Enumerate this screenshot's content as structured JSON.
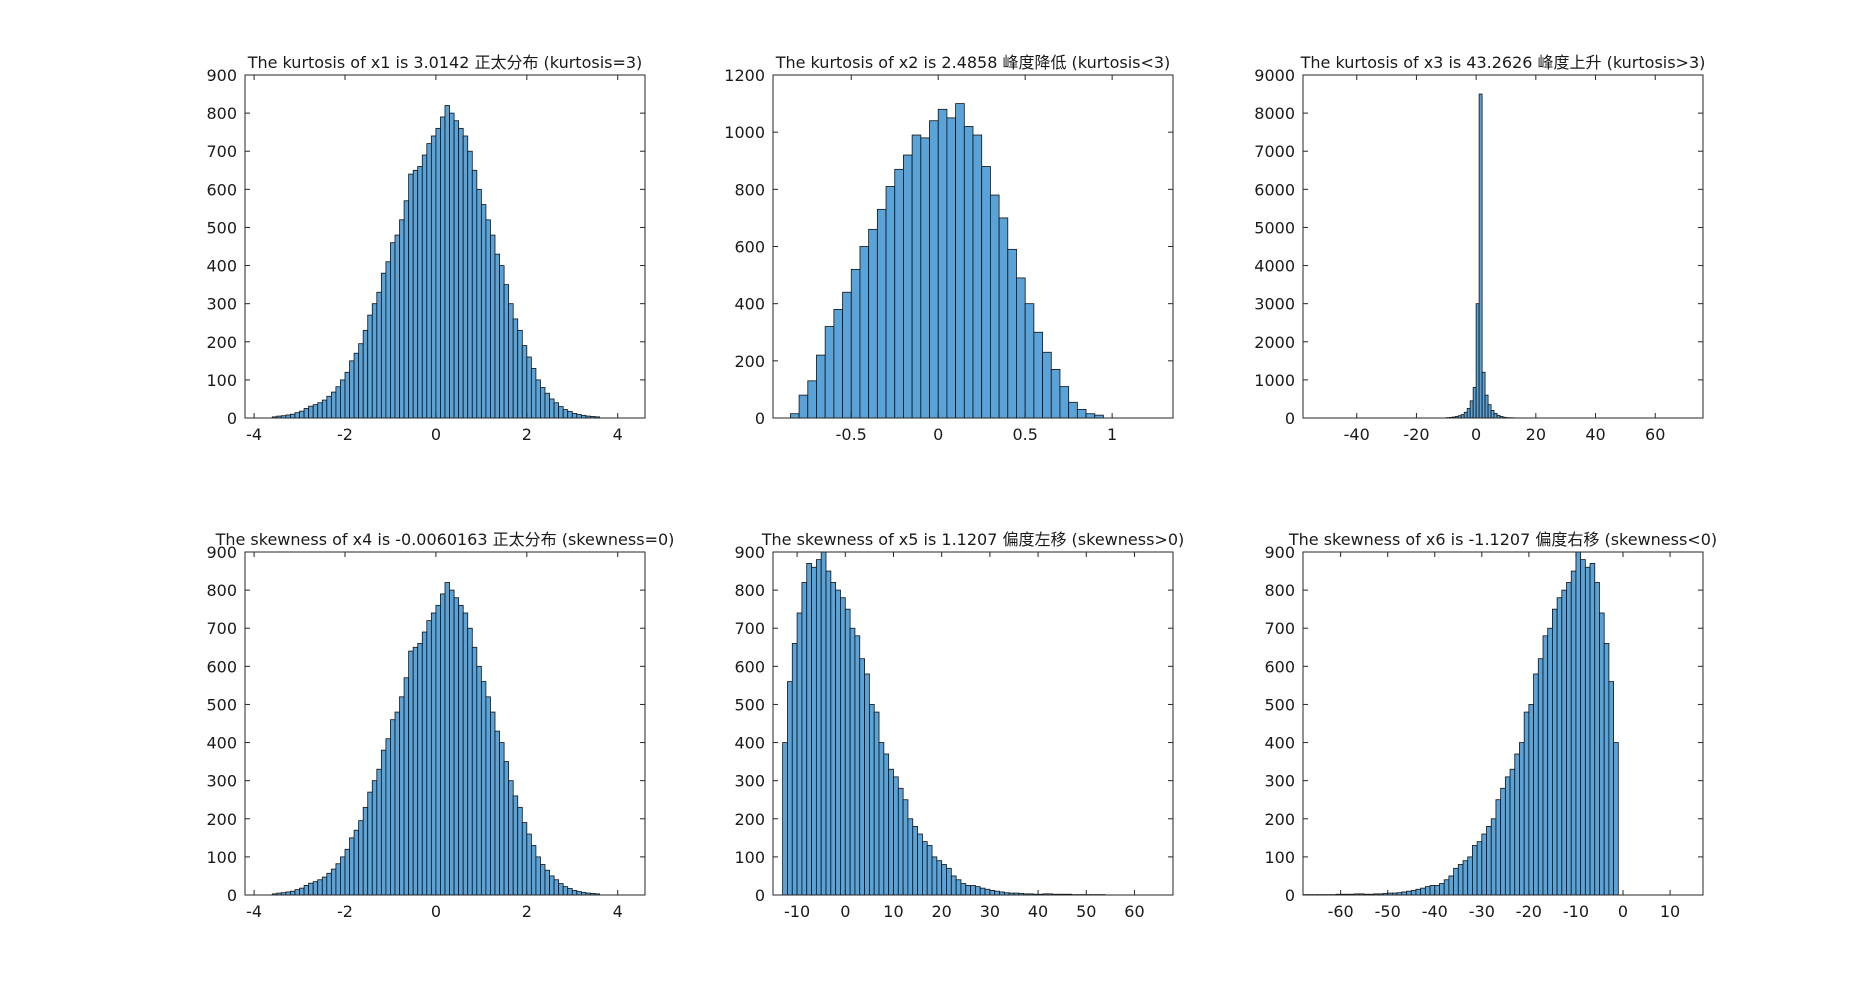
{
  "figure": {
    "background": "#ffffff",
    "bar_fill": "#5aa3d9",
    "bar_edge": "#111111",
    "axis_color": "#262626"
  },
  "chart_data": [
    {
      "type": "bar",
      "title": "The kurtosis of x1 is 3.0142 正太分布 (kurtosis=3)",
      "xlabel": "",
      "ylabel": "",
      "xlim": [
        -4.2,
        4.6
      ],
      "ylim": [
        0,
        900
      ],
      "xticks": [
        -4,
        -2,
        0,
        2,
        4
      ],
      "yticks": [
        0,
        100,
        200,
        300,
        400,
        500,
        600,
        700,
        800,
        900
      ],
      "bin_start": -3.6,
      "bin_width": 0.1,
      "values": [
        3,
        5,
        6,
        8,
        10,
        14,
        18,
        25,
        31,
        35,
        40,
        47,
        57,
        68,
        82,
        100,
        120,
        150,
        170,
        195,
        230,
        270,
        300,
        330,
        380,
        410,
        460,
        480,
        520,
        570,
        640,
        650,
        660,
        690,
        720,
        740,
        760,
        790,
        820,
        800,
        780,
        760,
        740,
        700,
        650,
        600,
        560,
        520,
        480,
        430,
        400,
        350,
        300,
        260,
        230,
        190,
        160,
        130,
        100,
        80,
        65,
        50,
        40,
        30,
        22,
        17,
        12,
        9,
        7,
        5,
        4,
        3
      ]
    },
    {
      "type": "bar",
      "title": "The kurtosis of x2 is 2.4858 峰度降低 (kurtosis<3)",
      "xlabel": "",
      "ylabel": "",
      "xlim": [
        -0.95,
        1.35
      ],
      "ylim": [
        0,
        1200
      ],
      "xticks": [
        -0.5,
        0,
        0.5,
        1
      ],
      "yticks": [
        0,
        200,
        400,
        600,
        800,
        1000,
        1200
      ],
      "bin_start": -0.85,
      "bin_width": 0.05,
      "values": [
        15,
        80,
        130,
        220,
        320,
        380,
        440,
        520,
        600,
        660,
        730,
        810,
        870,
        920,
        990,
        980,
        1040,
        1080,
        1050,
        1100,
        1020,
        990,
        880,
        780,
        700,
        590,
        490,
        400,
        300,
        230,
        170,
        110,
        55,
        30,
        15,
        10
      ]
    },
    {
      "type": "bar",
      "title": "The kurtosis of x3 is 43.2626 峰度上升 (kurtosis>3)",
      "xlabel": "",
      "ylabel": "",
      "xlim": [
        -58,
        76
      ],
      "ylim": [
        0,
        9000
      ],
      "xticks": [
        -40,
        -20,
        0,
        20,
        40,
        60
      ],
      "yticks": [
        0,
        1000,
        2000,
        3000,
        4000,
        5000,
        6000,
        7000,
        8000,
        9000
      ],
      "bin_start": -10,
      "bin_width": 1,
      "values": [
        10,
        15,
        25,
        40,
        60,
        90,
        150,
        250,
        450,
        800,
        3000,
        8500,
        1200,
        600,
        350,
        200,
        120,
        70,
        40,
        20,
        10,
        8,
        5,
        3
      ]
    },
    {
      "type": "bar",
      "title": "The skewness of x4 is -0.0060163 正太分布 (skewness=0)",
      "xlabel": "",
      "ylabel": "",
      "xlim": [
        -4.2,
        4.6
      ],
      "ylim": [
        0,
        900
      ],
      "xticks": [
        -4,
        -2,
        0,
        2,
        4
      ],
      "yticks": [
        0,
        100,
        200,
        300,
        400,
        500,
        600,
        700,
        800,
        900
      ],
      "xtick_labels": [
        "-4",
        "-2",
        "0",
        "2",
        "4"
      ],
      "bin_start": -3.6,
      "bin_width": 0.1,
      "values": [
        3,
        5,
        6,
        8,
        10,
        14,
        18,
        25,
        31,
        35,
        40,
        47,
        57,
        68,
        82,
        100,
        120,
        150,
        170,
        195,
        230,
        270,
        300,
        330,
        380,
        410,
        460,
        480,
        520,
        570,
        640,
        650,
        660,
        690,
        720,
        740,
        760,
        790,
        820,
        800,
        780,
        760,
        740,
        700,
        650,
        600,
        560,
        520,
        480,
        430,
        400,
        350,
        300,
        260,
        230,
        190,
        160,
        130,
        100,
        80,
        65,
        50,
        40,
        30,
        22,
        17,
        12,
        9,
        7,
        5,
        4,
        3
      ]
    },
    {
      "type": "bar",
      "title": "The skewness of x5 is 1.1207 偏度左移 (skewness>0)",
      "xlabel": "",
      "ylabel": "",
      "xlim": [
        -15,
        68
      ],
      "ylim": [
        0,
        900
      ],
      "xticks": [
        -10,
        0,
        10,
        20,
        30,
        40,
        50,
        60
      ],
      "yticks": [
        0,
        100,
        200,
        300,
        400,
        500,
        600,
        700,
        800,
        900
      ],
      "bin_start": -13,
      "bin_width": 1,
      "values": [
        400,
        560,
        660,
        740,
        820,
        870,
        860,
        880,
        900,
        850,
        820,
        800,
        780,
        750,
        700,
        680,
        620,
        580,
        500,
        480,
        400,
        370,
        330,
        310,
        280,
        250,
        200,
        180,
        160,
        140,
        130,
        100,
        90,
        80,
        70,
        50,
        40,
        30,
        25,
        25,
        22,
        18,
        15,
        12,
        10,
        8,
        6,
        5,
        5,
        4,
        3,
        3,
        2,
        2,
        3,
        3,
        2,
        2,
        2,
        2,
        1,
        1,
        1,
        1,
        1,
        1,
        1
      ]
    },
    {
      "type": "bar",
      "title": "The skewness of x6 is -1.1207 偏度右移 (skewness<0)",
      "xlabel": "",
      "ylabel": "",
      "xlim": [
        -68,
        17
      ],
      "ylim": [
        0,
        900
      ],
      "xticks": [
        -60,
        -50,
        -40,
        -30,
        -20,
        -10,
        0,
        10
      ],
      "yticks": [
        0,
        100,
        200,
        300,
        400,
        500,
        600,
        700,
        800,
        900
      ],
      "bin_start": -68,
      "bin_width": 1,
      "values": [
        1,
        1,
        1,
        1,
        1,
        1,
        1,
        2,
        2,
        2,
        2,
        3,
        3,
        2,
        2,
        3,
        3,
        4,
        5,
        5,
        6,
        8,
        10,
        12,
        15,
        18,
        22,
        25,
        25,
        30,
        40,
        50,
        70,
        80,
        90,
        100,
        130,
        140,
        160,
        180,
        200,
        250,
        280,
        310,
        330,
        370,
        400,
        480,
        500,
        580,
        620,
        680,
        700,
        750,
        780,
        800,
        820,
        850,
        900,
        880,
        860,
        870,
        820,
        740,
        660,
        560,
        400
      ]
    }
  ]
}
